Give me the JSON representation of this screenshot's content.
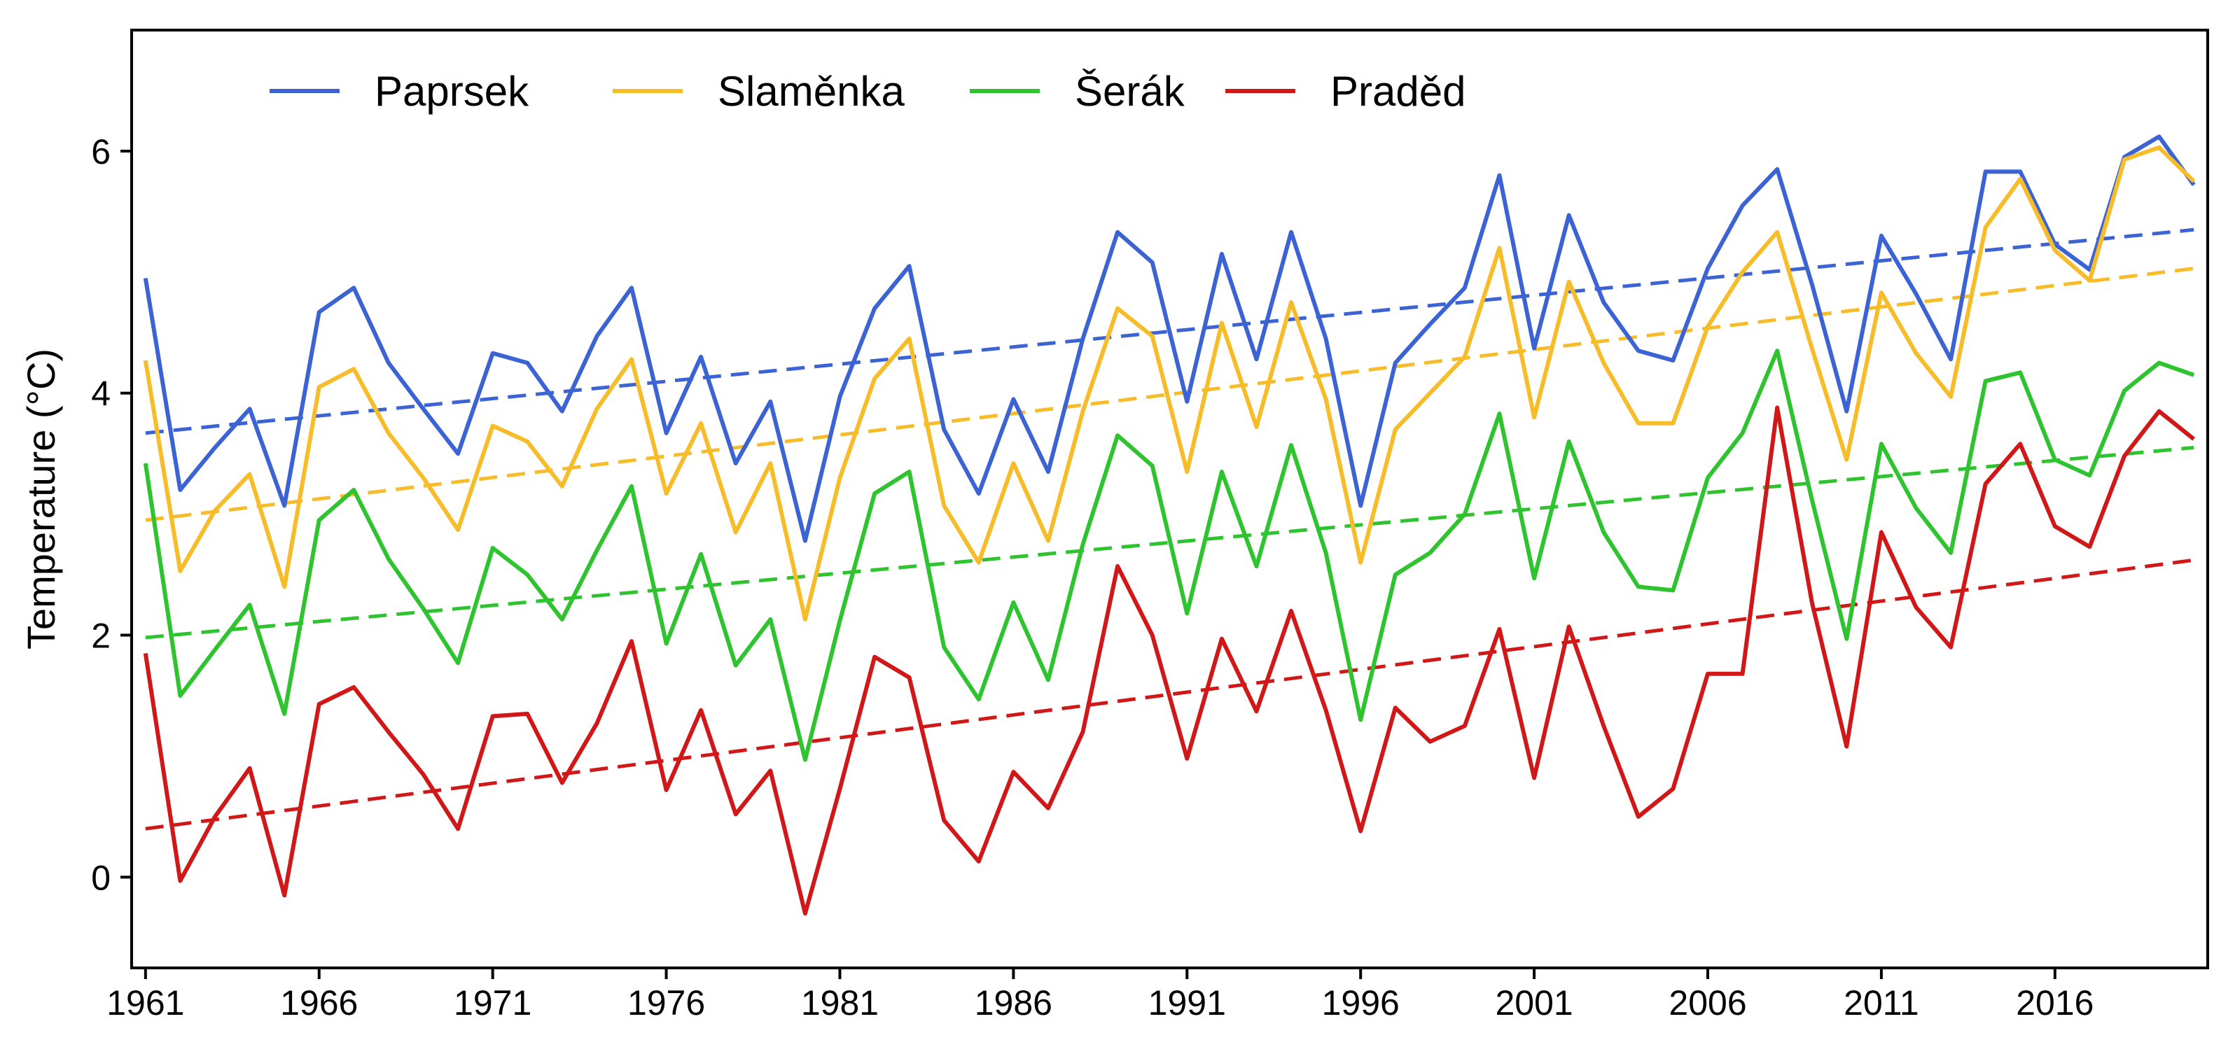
{
  "chart_data": {
    "type": "line",
    "title": "",
    "xlabel": "",
    "ylabel": "Temperature (°C)",
    "xlim": [
      1960.6,
      2020.4
    ],
    "ylim": [
      -0.75,
      7.0
    ],
    "x_ticks": [
      1961,
      1966,
      1971,
      1976,
      1981,
      1986,
      1991,
      1996,
      2001,
      2006,
      2011,
      2016
    ],
    "x_tick_labels": [
      "1961",
      "1966",
      "1971",
      "1976",
      "1981",
      "1986",
      "1991",
      "1996",
      "2001",
      "2006",
      "2011",
      "2016"
    ],
    "y_ticks": [
      0,
      2,
      4,
      6
    ],
    "y_tick_labels": [
      "0",
      "2",
      "4",
      "6"
    ],
    "grid": false,
    "legend_position": "top-left, horizontal",
    "x": [
      1961,
      1962,
      1963,
      1964,
      1965,
      1966,
      1967,
      1968,
      1969,
      1970,
      1971,
      1972,
      1973,
      1974,
      1975,
      1976,
      1977,
      1978,
      1979,
      1980,
      1981,
      1982,
      1983,
      1984,
      1985,
      1986,
      1987,
      1988,
      1989,
      1990,
      1991,
      1992,
      1993,
      1994,
      1995,
      1996,
      1997,
      1998,
      1999,
      2000,
      2001,
      2002,
      2003,
      2004,
      2005,
      2006,
      2007,
      2008,
      2009,
      2010,
      2011,
      2012,
      2013,
      2014,
      2015,
      2016,
      2017,
      2018,
      2019,
      2020
    ],
    "series": [
      {
        "name": "Paprsek",
        "color": "#3b63d3",
        "values": [
          4.95,
          3.2,
          3.55,
          3.87,
          3.07,
          4.67,
          4.87,
          4.25,
          3.87,
          3.5,
          4.33,
          4.25,
          3.85,
          4.47,
          4.87,
          3.67,
          4.3,
          3.42,
          3.93,
          2.78,
          3.97,
          4.7,
          5.05,
          3.7,
          3.17,
          3.95,
          3.35,
          4.45,
          5.33,
          5.08,
          3.93,
          5.15,
          4.28,
          5.33,
          4.45,
          3.07,
          4.25,
          4.57,
          4.87,
          5.8,
          4.37,
          5.47,
          4.75,
          4.35,
          4.27,
          5.03,
          5.55,
          5.85,
          4.9,
          3.85,
          5.3,
          4.82,
          4.28,
          5.83,
          5.83,
          5.23,
          5.02,
          5.95,
          6.12,
          5.72
        ],
        "trend": {
          "start": 3.67,
          "end": 5.35
        }
      },
      {
        "name": "Slaměnka",
        "color": "#f7bc2a",
        "values": [
          4.27,
          2.53,
          3.03,
          3.33,
          2.4,
          4.05,
          4.2,
          3.67,
          3.3,
          2.87,
          3.73,
          3.6,
          3.23,
          3.87,
          4.28,
          3.17,
          3.75,
          2.85,
          3.42,
          2.13,
          3.3,
          4.12,
          4.45,
          3.07,
          2.6,
          3.42,
          2.78,
          3.85,
          4.7,
          4.47,
          3.35,
          4.58,
          3.72,
          4.75,
          3.95,
          2.6,
          3.7,
          4.0,
          4.3,
          5.2,
          3.8,
          4.92,
          4.25,
          3.75,
          3.75,
          4.55,
          5.0,
          5.33,
          4.37,
          3.45,
          4.83,
          4.33,
          3.97,
          5.37,
          5.77,
          5.18,
          4.93,
          5.93,
          6.03,
          5.75
        ],
        "trend": {
          "start": 2.95,
          "end": 5.03
        }
      },
      {
        "name": "Šerák",
        "color": "#2fc42f",
        "values": [
          3.42,
          1.5,
          1.88,
          2.25,
          1.35,
          2.95,
          3.2,
          2.63,
          2.22,
          1.77,
          2.72,
          2.5,
          2.13,
          2.7,
          3.23,
          1.93,
          2.67,
          1.75,
          2.13,
          0.97,
          2.12,
          3.17,
          3.35,
          1.9,
          1.47,
          2.27,
          1.63,
          2.75,
          3.65,
          3.4,
          2.18,
          3.35,
          2.57,
          3.57,
          2.68,
          1.3,
          2.5,
          2.68,
          3.0,
          3.83,
          2.47,
          3.6,
          2.85,
          2.4,
          2.37,
          3.3,
          3.67,
          4.35,
          3.12,
          1.97,
          3.58,
          3.05,
          2.68,
          4.1,
          4.17,
          3.45,
          3.32,
          4.02,
          4.25,
          4.15
        ],
        "trend": {
          "start": 1.98,
          "end": 3.55
        }
      },
      {
        "name": "Praděd",
        "color": "#d01818",
        "values": [
          1.85,
          -0.03,
          0.5,
          0.9,
          -0.15,
          1.43,
          1.57,
          1.2,
          0.85,
          0.4,
          1.33,
          1.35,
          0.78,
          1.27,
          1.95,
          0.72,
          1.38,
          0.52,
          0.88,
          -0.3,
          0.73,
          1.82,
          1.65,
          0.47,
          0.13,
          0.87,
          0.57,
          1.2,
          2.57,
          2.0,
          0.98,
          1.97,
          1.37,
          2.2,
          1.38,
          0.38,
          1.4,
          1.12,
          1.25,
          2.05,
          0.82,
          2.07,
          1.25,
          0.5,
          0.73,
          1.68,
          1.68,
          3.88,
          2.27,
          1.08,
          2.85,
          2.23,
          1.9,
          3.25,
          3.58,
          2.9,
          2.73,
          3.48,
          3.85,
          3.62
        ],
        "trend": {
          "start": 0.4,
          "end": 2.62
        }
      }
    ]
  }
}
